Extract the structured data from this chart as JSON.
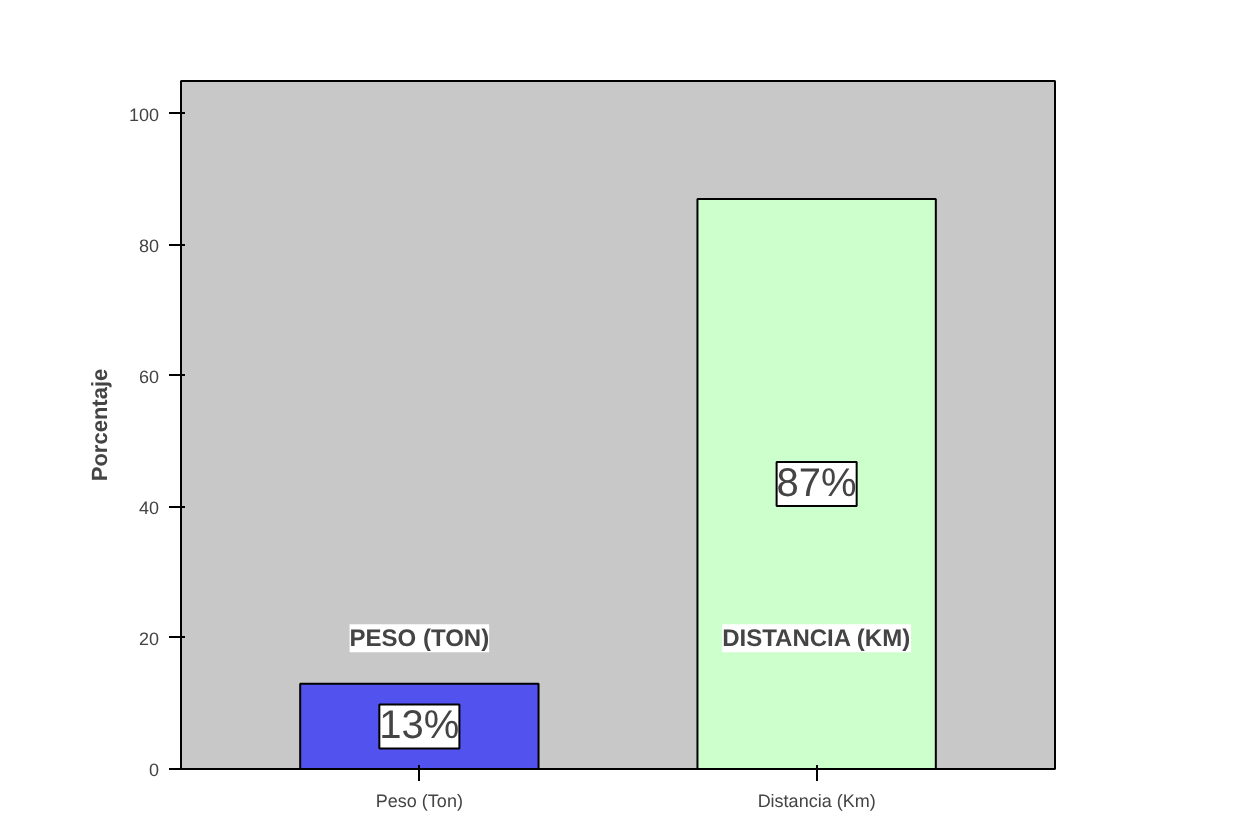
{
  "chart_data": {
    "type": "bar",
    "ylabel": "Porcentaje",
    "categories": [
      "Peso (Ton)",
      "Distancia (Km)"
    ],
    "values": [
      13,
      87
    ],
    "colors": [
      "#5252ee",
      "#ccffcc"
    ],
    "value_labels": [
      "13%",
      "87%"
    ],
    "annotations": [
      "PESO (TON)",
      "DISTANCIA (KM)"
    ],
    "ylim": [
      0,
      105
    ],
    "yticks": [
      0,
      20,
      40,
      60,
      80,
      100
    ],
    "grid": false
  }
}
